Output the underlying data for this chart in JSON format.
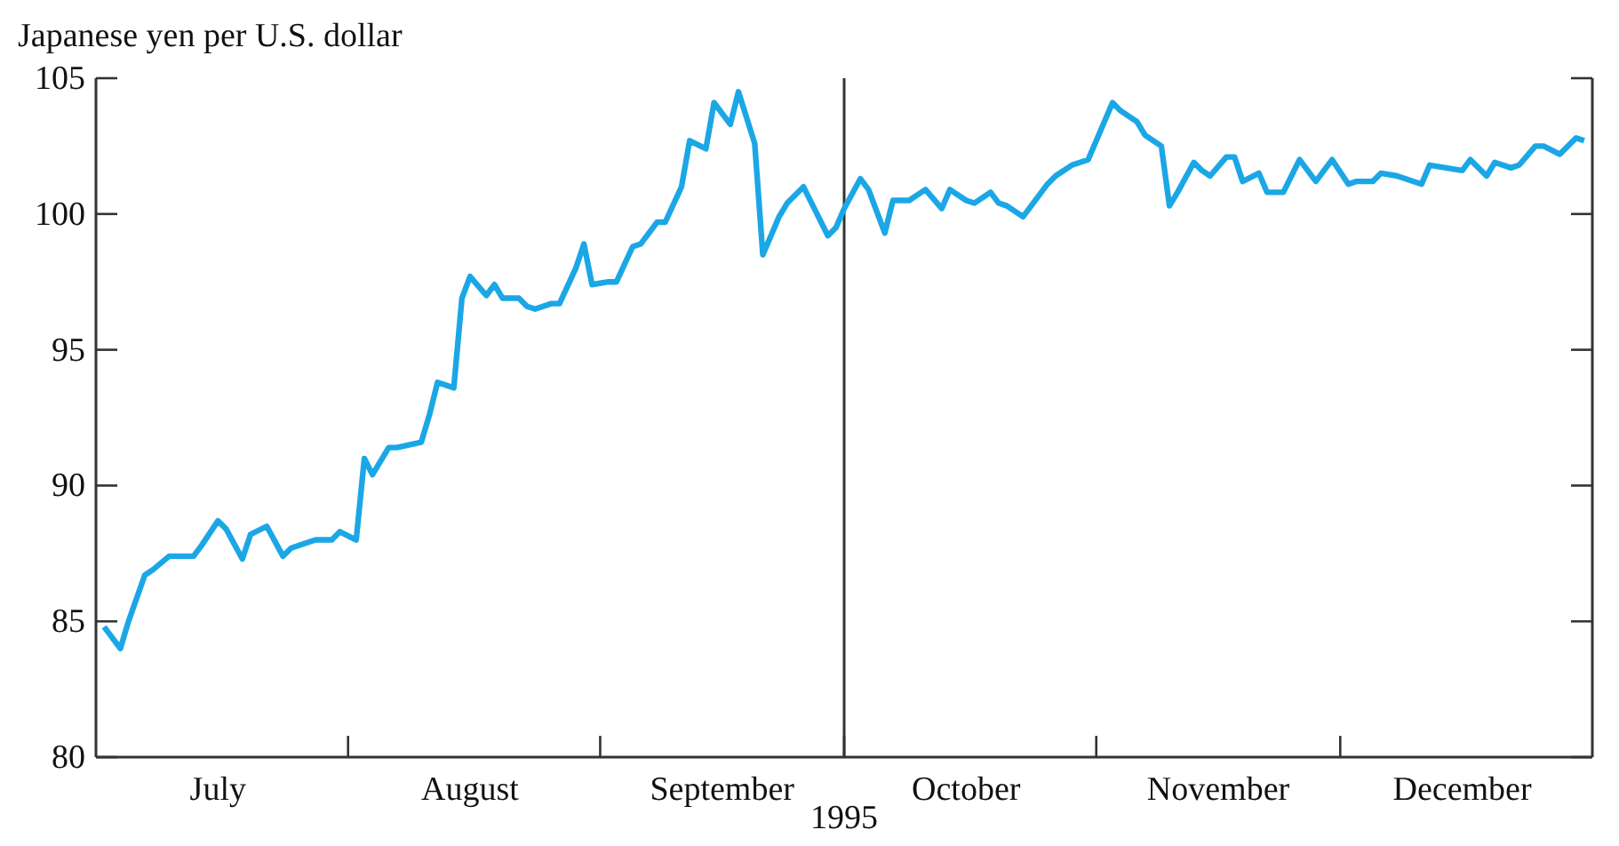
{
  "chart_data": {
    "type": "line",
    "ylabel": "Japanese yen per U.S. dollar",
    "xlabel": "1995",
    "x": [
      "1995-07-02",
      "1995-07-04",
      "1995-07-05",
      "1995-07-07",
      "1995-07-08",
      "1995-07-10",
      "1995-07-13",
      "1995-07-14",
      "1995-07-16",
      "1995-07-17",
      "1995-07-19",
      "1995-07-20",
      "1995-07-22",
      "1995-07-24",
      "1995-07-25",
      "1995-07-27",
      "1995-07-28",
      "1995-07-30",
      "1995-07-31",
      "1995-08-02",
      "1995-08-03",
      "1995-08-04",
      "1995-08-06",
      "1995-08-07",
      "1995-08-10",
      "1995-08-11",
      "1995-08-12",
      "1995-08-14",
      "1995-08-15",
      "1995-08-16",
      "1995-08-18",
      "1995-08-19",
      "1995-08-20",
      "1995-08-22",
      "1995-08-23",
      "1995-08-24",
      "1995-08-26",
      "1995-08-27",
      "1995-08-29",
      "1995-08-30",
      "1995-08-31",
      "1995-09-02",
      "1995-09-03",
      "1995-09-05",
      "1995-09-06",
      "1995-09-08",
      "1995-09-09",
      "1995-09-11",
      "1995-09-12",
      "1995-09-14",
      "1995-09-15",
      "1995-09-17",
      "1995-09-18",
      "1995-09-20",
      "1995-09-21",
      "1995-09-23",
      "1995-09-24",
      "1995-09-26",
      "1995-09-27",
      "1995-09-29",
      "1995-09-30",
      "1995-10-01",
      "1995-10-03",
      "1995-10-04",
      "1995-10-06",
      "1995-10-07",
      "1995-10-09",
      "1995-10-10",
      "1995-10-11",
      "1995-10-13",
      "1995-10-14",
      "1995-10-16",
      "1995-10-17",
      "1995-10-19",
      "1995-10-20",
      "1995-10-21",
      "1995-10-23",
      "1995-10-26",
      "1995-10-27",
      "1995-10-29",
      "1995-10-30",
      "1995-10-31",
      "1995-11-03",
      "1995-11-04",
      "1995-11-06",
      "1995-11-07",
      "1995-11-09",
      "1995-11-10",
      "1995-11-11",
      "1995-11-13",
      "1995-11-14",
      "1995-11-15",
      "1995-11-17",
      "1995-11-18",
      "1995-11-19",
      "1995-11-21",
      "1995-11-22",
      "1995-11-24",
      "1995-11-25",
      "1995-11-26",
      "1995-11-28",
      "1995-11-29",
      "1995-11-30",
      "1995-12-02",
      "1995-12-03",
      "1995-12-05",
      "1995-12-06",
      "1995-12-08",
      "1995-12-11",
      "1995-12-12",
      "1995-12-14",
      "1995-12-16",
      "1995-12-17",
      "1995-12-19",
      "1995-12-20",
      "1995-12-22",
      "1995-12-23",
      "1995-12-25",
      "1995-12-26",
      "1995-12-28",
      "1995-12-30",
      "1995-12-31"
    ],
    "series": [
      {
        "color": "#1ba7e6",
        "values": [
          84.8,
          84.0,
          85.0,
          86.7,
          86.9,
          87.4,
          87.4,
          87.8,
          88.7,
          88.4,
          87.3,
          88.2,
          88.5,
          87.4,
          87.7,
          87.9,
          88.0,
          88.0,
          88.3,
          88.0,
          91.0,
          90.4,
          91.4,
          91.4,
          91.6,
          92.6,
          93.8,
          93.6,
          96.9,
          97.7,
          97.0,
          97.4,
          96.9,
          96.9,
          96.6,
          96.5,
          96.7,
          96.7,
          98.0,
          98.9,
          97.4,
          97.5,
          97.5,
          98.8,
          98.9,
          99.7,
          99.7,
          101.0,
          102.7,
          102.4,
          104.1,
          103.3,
          104.5,
          102.6,
          98.5,
          99.9,
          100.4,
          101.0,
          100.4,
          99.2,
          99.5,
          100.2,
          101.3,
          100.9,
          99.3,
          100.5,
          100.5,
          100.7,
          100.9,
          100.2,
          100.9,
          100.5,
          100.4,
          100.8,
          100.4,
          100.3,
          99.9,
          101.1,
          101.4,
          101.8,
          101.9,
          102.0,
          104.1,
          103.8,
          103.4,
          102.9,
          102.5,
          100.3,
          100.8,
          101.9,
          101.6,
          101.4,
          102.1,
          102.1,
          101.2,
          101.5,
          100.8,
          100.8,
          101.4,
          102.0,
          101.2,
          101.6,
          102.0,
          101.1,
          101.2,
          101.2,
          101.5,
          101.4,
          101.1,
          101.8,
          101.7,
          101.6,
          102.0,
          101.4,
          101.9,
          101.7,
          101.8,
          102.5,
          102.5,
          102.2,
          102.8,
          102.7
        ]
      }
    ],
    "xlim": [
      "1995-07-01",
      "1996-01-01"
    ],
    "xticks": [
      {
        "value": "1995-07-16",
        "label": "July"
      },
      {
        "value": "1995-08-01",
        "label": null
      },
      {
        "value": "1995-08-16",
        "label": "August"
      },
      {
        "value": "1995-09-01",
        "label": null
      },
      {
        "value": "1995-09-16",
        "label": "September"
      },
      {
        "value": "1995-10-01",
        "label": null
      },
      {
        "value": "1995-10-16",
        "label": "October"
      },
      {
        "value": "1995-11-01",
        "label": null
      },
      {
        "value": "1995-11-16",
        "label": "November"
      },
      {
        "value": "1995-12-01",
        "label": null
      },
      {
        "value": "1995-12-16",
        "label": "December"
      }
    ],
    "ylim": [
      80,
      105
    ],
    "yticks": [
      80,
      85,
      90,
      95,
      100,
      105
    ],
    "ref_lines": [
      {
        "axis": "x",
        "value": "1995-10-01",
        "color": "#333333"
      }
    ],
    "grid": false,
    "legend": false,
    "marker": "none",
    "line_style": "solid"
  }
}
